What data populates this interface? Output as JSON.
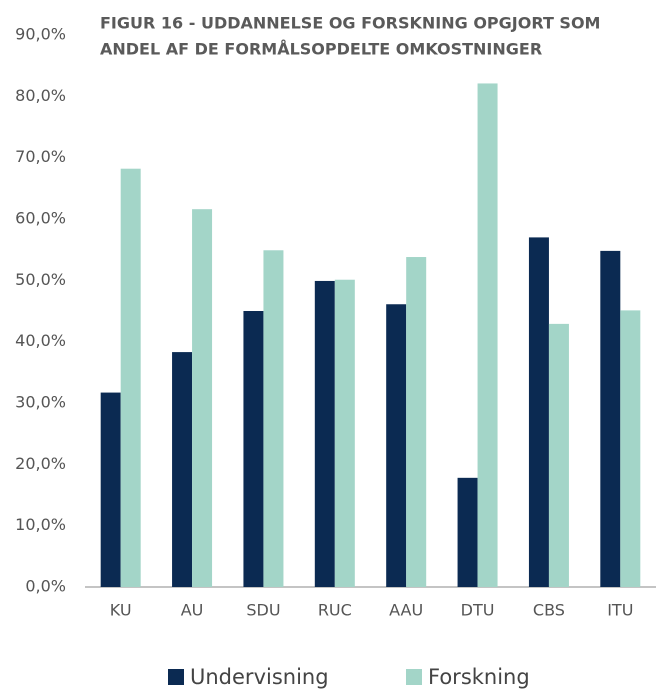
{
  "chart_data": {
    "type": "bar",
    "title": [
      "FIGUR 16 - UDDANNELSE OG FORSKNING OPGJORT SOM",
      "ANDEL AF DE FORMÅLSOPDELTE OMKOSTNINGER"
    ],
    "categories": [
      "KU",
      "AU",
      "SDU",
      "RUC",
      "AAU",
      "DTU",
      "CBS",
      "ITU"
    ],
    "series": [
      {
        "name": "Undervisning",
        "color": "#0b2a52",
        "values": [
          31.7,
          38.3,
          45.0,
          49.9,
          46.1,
          17.8,
          57.0,
          54.8
        ]
      },
      {
        "name": "Forskning",
        "color": "#a3d5c8",
        "values": [
          68.2,
          61.6,
          54.9,
          50.1,
          53.8,
          82.1,
          42.9,
          45.1
        ]
      }
    ],
    "ylim": [
      0,
      90
    ],
    "yticks": [
      {
        "value": 0,
        "label": "0,0%"
      },
      {
        "value": 10,
        "label": "10,0%"
      },
      {
        "value": 20,
        "label": "20,0%"
      },
      {
        "value": 30,
        "label": "30,0%"
      },
      {
        "value": 40,
        "label": "40,0%"
      },
      {
        "value": 50,
        "label": "50,0%"
      },
      {
        "value": 60,
        "label": "60,0%"
      },
      {
        "value": 70,
        "label": "70,0%"
      },
      {
        "value": 80,
        "label": "80,0%"
      },
      {
        "value": 90,
        "label": "90,0%"
      }
    ],
    "grid": false
  }
}
